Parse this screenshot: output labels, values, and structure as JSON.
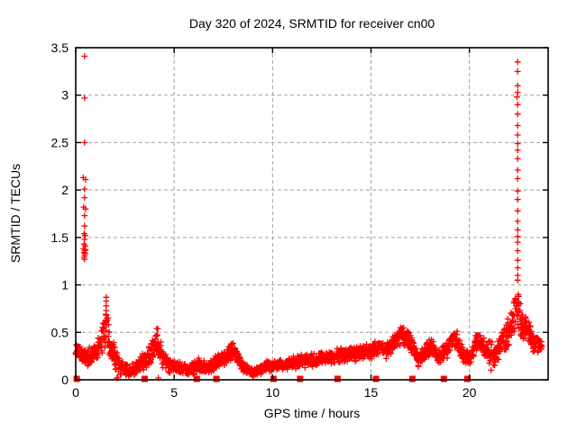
{
  "chart_data": {
    "type": "scatter",
    "title": "Day 320 of 2024, SRMTID for receiver cn00",
    "xlabel": "GPS time / hours",
    "ylabel": "SRMTID / TECUs",
    "xlim": [
      0,
      24
    ],
    "ylim": [
      0,
      3.5
    ],
    "xticks": [
      0,
      5,
      10,
      15,
      20
    ],
    "xtick_labels": [
      "0",
      "5",
      "10",
      "15",
      "20"
    ],
    "yticks": [
      0,
      0.5,
      1,
      1.5,
      2,
      2.5,
      3,
      3.5
    ],
    "ytick_labels": [
      "0",
      "0.5",
      "1",
      "1.5",
      "2",
      "2.5",
      "3",
      "3.5"
    ],
    "grid": true,
    "legend": "none",
    "colors": {
      "marker": "#ff0000",
      "grid": "#a0a0a0",
      "border": "#000000",
      "text": "#000000",
      "background": "#ffffff"
    },
    "series": [
      {
        "name": "srmtid-dense-band",
        "marker": "plus",
        "representation": "envelope-scatter",
        "step_hours": 0.015,
        "band": [
          [
            0.0,
            0.22,
            0.42
          ],
          [
            0.3,
            0.12,
            0.4
          ],
          [
            0.6,
            0.1,
            0.35
          ],
          [
            1.0,
            0.15,
            0.4
          ],
          [
            1.3,
            0.25,
            0.55
          ],
          [
            1.55,
            0.35,
            0.8
          ],
          [
            1.7,
            0.2,
            0.55
          ],
          [
            2.0,
            0.1,
            0.35
          ],
          [
            2.3,
            0.05,
            0.25
          ],
          [
            2.7,
            0.02,
            0.15
          ],
          [
            3.0,
            0.05,
            0.2
          ],
          [
            3.4,
            0.08,
            0.3
          ],
          [
            3.7,
            0.1,
            0.35
          ],
          [
            4.0,
            0.2,
            0.5
          ],
          [
            4.15,
            0.25,
            0.58
          ],
          [
            4.4,
            0.1,
            0.35
          ],
          [
            4.7,
            0.05,
            0.25
          ],
          [
            5.0,
            0.08,
            0.22
          ],
          [
            5.5,
            0.05,
            0.18
          ],
          [
            6.0,
            0.05,
            0.2
          ],
          [
            6.3,
            0.08,
            0.25
          ],
          [
            6.7,
            0.05,
            0.18
          ],
          [
            7.0,
            0.08,
            0.25
          ],
          [
            7.3,
            0.12,
            0.3
          ],
          [
            7.7,
            0.15,
            0.35
          ],
          [
            8.0,
            0.2,
            0.45
          ],
          [
            8.3,
            0.12,
            0.32
          ],
          [
            8.6,
            0.03,
            0.18
          ],
          [
            9.0,
            0.02,
            0.12
          ],
          [
            9.3,
            0.04,
            0.15
          ],
          [
            9.6,
            0.08,
            0.22
          ],
          [
            10.0,
            0.08,
            0.2
          ],
          [
            10.5,
            0.1,
            0.22
          ],
          [
            11.0,
            0.1,
            0.25
          ],
          [
            11.5,
            0.12,
            0.28
          ],
          [
            12.0,
            0.12,
            0.28
          ],
          [
            12.5,
            0.15,
            0.3
          ],
          [
            13.0,
            0.15,
            0.32
          ],
          [
            13.5,
            0.18,
            0.35
          ],
          [
            14.0,
            0.18,
            0.35
          ],
          [
            14.5,
            0.2,
            0.38
          ],
          [
            15.0,
            0.2,
            0.4
          ],
          [
            15.4,
            0.25,
            0.45
          ],
          [
            15.8,
            0.2,
            0.4
          ],
          [
            16.2,
            0.3,
            0.5
          ],
          [
            16.6,
            0.35,
            0.62
          ],
          [
            17.0,
            0.3,
            0.5
          ],
          [
            17.4,
            0.12,
            0.3
          ],
          [
            17.8,
            0.2,
            0.42
          ],
          [
            18.1,
            0.25,
            0.45
          ],
          [
            18.5,
            0.15,
            0.32
          ],
          [
            19.0,
            0.25,
            0.5
          ],
          [
            19.3,
            0.3,
            0.55
          ],
          [
            19.7,
            0.15,
            0.35
          ],
          [
            20.0,
            0.1,
            0.3
          ],
          [
            20.3,
            0.28,
            0.5
          ],
          [
            20.6,
            0.3,
            0.52
          ],
          [
            21.0,
            0.05,
            0.45
          ],
          [
            21.3,
            0.08,
            0.4
          ],
          [
            21.6,
            0.25,
            0.5
          ],
          [
            21.9,
            0.3,
            0.6
          ],
          [
            22.2,
            0.4,
            0.85
          ],
          [
            22.45,
            0.5,
            1.0
          ],
          [
            22.7,
            0.35,
            0.75
          ],
          [
            23.0,
            0.4,
            0.65
          ],
          [
            23.3,
            0.25,
            0.5
          ],
          [
            23.7,
            0.28,
            0.42
          ]
        ]
      },
      {
        "name": "morning-spike-h0.45",
        "marker": "plus",
        "points": [
          [
            0.45,
            3.41
          ],
          [
            0.45,
            2.97
          ],
          [
            0.45,
            2.5
          ],
          [
            0.38,
            2.13
          ],
          [
            0.5,
            2.11
          ],
          [
            0.45,
            2.01
          ],
          [
            0.45,
            1.92
          ],
          [
            0.4,
            1.82
          ],
          [
            0.5,
            1.8
          ],
          [
            0.45,
            1.73
          ],
          [
            0.45,
            1.62
          ],
          [
            0.42,
            1.54
          ],
          [
            0.48,
            1.52
          ],
          [
            0.45,
            1.48
          ],
          [
            0.42,
            1.43
          ],
          [
            0.48,
            1.41
          ],
          [
            0.4,
            1.38
          ],
          [
            0.5,
            1.37
          ],
          [
            0.45,
            1.36
          ],
          [
            0.43,
            1.34
          ],
          [
            0.47,
            1.33
          ],
          [
            0.45,
            1.31
          ],
          [
            0.42,
            1.29
          ],
          [
            0.45,
            1.27
          ]
        ]
      },
      {
        "name": "evening-spike-h22.45",
        "marker": "plus",
        "points": [
          [
            22.45,
            3.35
          ],
          [
            22.45,
            3.25
          ],
          [
            22.45,
            3.1
          ],
          [
            22.45,
            3.03
          ],
          [
            22.42,
            2.98
          ],
          [
            22.45,
            2.9
          ],
          [
            22.45,
            2.8
          ],
          [
            22.45,
            2.68
          ],
          [
            22.45,
            2.58
          ],
          [
            22.45,
            2.49
          ],
          [
            22.45,
            2.42
          ],
          [
            22.45,
            2.33
          ],
          [
            22.45,
            2.21
          ],
          [
            22.45,
            2.12
          ],
          [
            22.45,
            1.99
          ],
          [
            22.45,
            1.9
          ],
          [
            22.45,
            1.78
          ],
          [
            22.45,
            1.67
          ],
          [
            22.45,
            1.58
          ],
          [
            22.45,
            1.51
          ],
          [
            22.45,
            1.45
          ],
          [
            22.45,
            1.36
          ],
          [
            22.45,
            1.26
          ],
          [
            22.45,
            1.18
          ],
          [
            22.45,
            1.1
          ],
          [
            22.45,
            1.05
          ]
        ]
      },
      {
        "name": "local-peak-columns-and-zero-touches",
        "marker": "plus",
        "points": [
          [
            1.55,
            0.87
          ],
          [
            1.55,
            0.83
          ],
          [
            1.55,
            0.78
          ],
          [
            1.55,
            0.73
          ],
          [
            1.55,
            0.68
          ],
          [
            1.55,
            0.63
          ],
          [
            1.55,
            0.58
          ],
          [
            1.55,
            0.52
          ],
          [
            2.08,
            0.02
          ],
          [
            2.15,
            0.02
          ],
          [
            4.2,
            0.02
          ]
        ]
      },
      {
        "name": "zero-flag-squares",
        "marker": "filled-square",
        "y": 0,
        "x": [
          0.05,
          3.5,
          6.15,
          7.15,
          10.05,
          11.4,
          13.3,
          15.25,
          17.1,
          18.7,
          19.9
        ]
      }
    ]
  }
}
